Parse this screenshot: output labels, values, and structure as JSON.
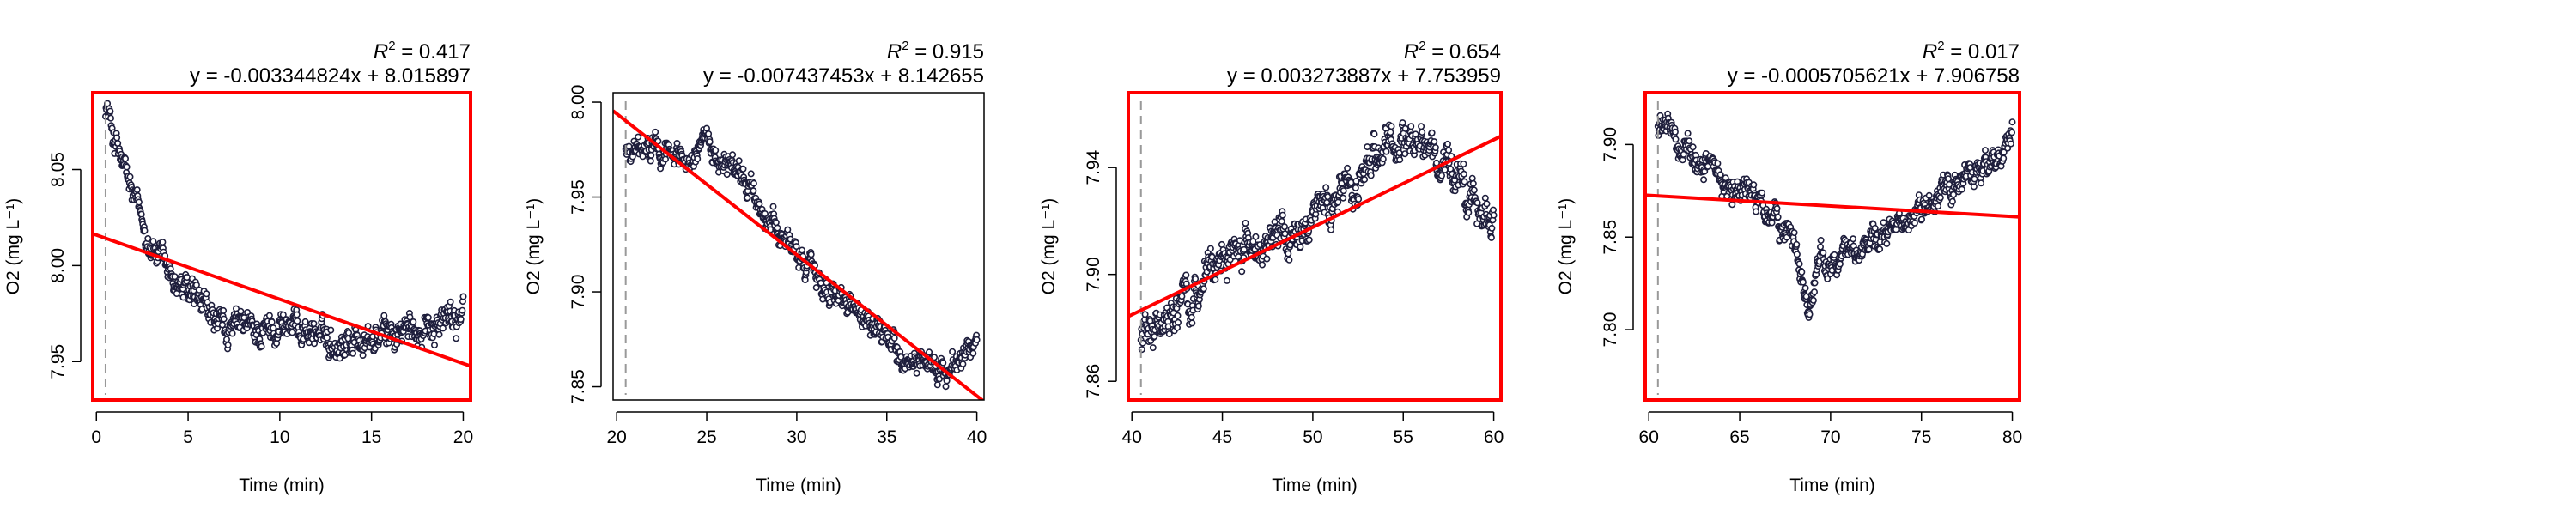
{
  "figure": {
    "colors": {
      "highlight_frame": "#ff0000",
      "plain_frame": "#000000",
      "fit_line": "#ff0000",
      "points": "#1e1e3c",
      "start_marker": "#999999"
    }
  },
  "chart_data": [
    {
      "type": "scatter",
      "title": "",
      "xlabel": "Time (min)",
      "ylabel": "O2 (mg L⁻¹)",
      "xlim": [
        -0.2,
        20.4
      ],
      "ylim": [
        7.93,
        8.09
      ],
      "xticks": [
        "0",
        "5",
        "10",
        "15",
        "20"
      ],
      "xtick_values": [
        0,
        5,
        10,
        15,
        20
      ],
      "yticks": [
        "7.95",
        "8.00",
        "8.05"
      ],
      "ytick_values": [
        7.95,
        8.0,
        8.05
      ],
      "r2_label": "R",
      "r2_superscript": "2",
      "r2_value": " = 0.417",
      "equation": "y = -0.003344824x + 8.015897",
      "slope": -0.003344824,
      "intercept": 8.015897,
      "start_x": 0.5,
      "frame": "red",
      "trace_anchors": [
        [
          0.5,
          8.085
        ],
        [
          1.0,
          8.065
        ],
        [
          2.0,
          8.035
        ],
        [
          3.0,
          8.01
        ],
        [
          4.0,
          7.995
        ],
        [
          5.0,
          7.985
        ],
        [
          6.0,
          7.975
        ],
        [
          7.0,
          7.965
        ],
        [
          8.0,
          7.968
        ],
        [
          9.0,
          7.965
        ],
        [
          10.0,
          7.97
        ],
        [
          11.0,
          7.968
        ],
        [
          12.0,
          7.965
        ],
        [
          13.0,
          7.96
        ],
        [
          14.0,
          7.962
        ],
        [
          15.0,
          7.96
        ],
        [
          16.0,
          7.965
        ],
        [
          17.0,
          7.965
        ],
        [
          18.0,
          7.97
        ],
        [
          19.0,
          7.972
        ],
        [
          20.0,
          7.975
        ]
      ],
      "noise": 0.009
    },
    {
      "type": "scatter",
      "title": "",
      "xlabel": "Time (min)",
      "ylabel": "O2 (mg L⁻¹)",
      "xlim": [
        19.8,
        40.4
      ],
      "ylim": [
        7.843,
        8.005
      ],
      "xticks": [
        "20",
        "25",
        "30",
        "35",
        "40"
      ],
      "xtick_values": [
        20,
        25,
        30,
        35,
        40
      ],
      "yticks": [
        "7.85",
        "7.90",
        "7.95",
        "8.00"
      ],
      "ytick_values": [
        7.85,
        7.9,
        7.95,
        8.0
      ],
      "r2_label": "R",
      "r2_superscript": "2",
      "r2_value": " = 0.915",
      "equation": "y = -0.007437453x + 8.142655",
      "slope": -0.007437453,
      "intercept": 8.142655,
      "start_x": 20.5,
      "frame": "black",
      "trace_anchors": [
        [
          20.5,
          7.975
        ],
        [
          22.0,
          7.975
        ],
        [
          24.0,
          7.972
        ],
        [
          25.0,
          7.975
        ],
        [
          26.0,
          7.97
        ],
        [
          27.0,
          7.96
        ],
        [
          28.0,
          7.945
        ],
        [
          29.0,
          7.93
        ],
        [
          30.0,
          7.92
        ],
        [
          31.0,
          7.91
        ],
        [
          32.0,
          7.9
        ],
        [
          33.0,
          7.89
        ],
        [
          34.0,
          7.88
        ],
        [
          35.0,
          7.875
        ],
        [
          36.0,
          7.865
        ],
        [
          37.0,
          7.86
        ],
        [
          38.0,
          7.86
        ],
        [
          39.0,
          7.865
        ],
        [
          40.0,
          7.875
        ]
      ],
      "noise": 0.007
    },
    {
      "type": "scatter",
      "title": "",
      "xlabel": "Time (min)",
      "ylabel": "O2 (mg L⁻¹)",
      "xlim": [
        39.8,
        60.4
      ],
      "ylim": [
        7.853,
        7.968
      ],
      "xticks": [
        "40",
        "45",
        "50",
        "55",
        "60"
      ],
      "xtick_values": [
        40,
        45,
        50,
        55,
        60
      ],
      "yticks": [
        "7.86",
        "7.90",
        "7.94"
      ],
      "ytick_values": [
        7.86,
        7.9,
        7.94
      ],
      "r2_label": "R",
      "r2_superscript": "2",
      "r2_value": " = 0.654",
      "equation": "y = 0.003273887x + 7.753959",
      "slope": 0.003273887,
      "intercept": 7.753959,
      "start_x": 40.5,
      "frame": "red",
      "trace_anchors": [
        [
          40.5,
          7.875
        ],
        [
          42.0,
          7.885
        ],
        [
          43.0,
          7.89
        ],
        [
          44.0,
          7.9
        ],
        [
          45.0,
          7.905
        ],
        [
          46.0,
          7.91
        ],
        [
          47.0,
          7.912
        ],
        [
          48.0,
          7.915
        ],
        [
          49.0,
          7.915
        ],
        [
          50.0,
          7.92
        ],
        [
          51.0,
          7.925
        ],
        [
          52.0,
          7.93
        ],
        [
          53.0,
          7.94
        ],
        [
          54.0,
          7.945
        ],
        [
          55.0,
          7.95
        ],
        [
          56.0,
          7.948
        ],
        [
          57.0,
          7.94
        ],
        [
          58.0,
          7.935
        ],
        [
          59.0,
          7.925
        ],
        [
          60.0,
          7.92
        ]
      ],
      "noise": 0.008
    },
    {
      "type": "scatter",
      "title": "",
      "xlabel": "Time (min)",
      "ylabel": "O2 (mg L⁻¹)",
      "xlim": [
        59.8,
        80.4
      ],
      "ylim": [
        7.762,
        7.928
      ],
      "xticks": [
        "60",
        "65",
        "70",
        "75",
        "80"
      ],
      "xtick_values": [
        60,
        65,
        70,
        75,
        80
      ],
      "yticks": [
        "7.80",
        "7.85",
        "7.90"
      ],
      "ytick_values": [
        7.8,
        7.85,
        7.9
      ],
      "r2_label": "R",
      "r2_superscript": "2",
      "r2_value": " = 0.017",
      "equation": "y = -0.0005705621x + 7.906758",
      "slope": -0.0005705621,
      "intercept": 7.906758,
      "start_x": 60.5,
      "frame": "red",
      "trace_anchors": [
        [
          60.5,
          7.91
        ],
        [
          62.0,
          7.9
        ],
        [
          63.0,
          7.89
        ],
        [
          64.0,
          7.88
        ],
        [
          65.0,
          7.875
        ],
        [
          66.0,
          7.87
        ],
        [
          67.0,
          7.86
        ],
        [
          68.0,
          7.85
        ],
        [
          68.8,
          7.81
        ],
        [
          69.5,
          7.84
        ],
        [
          70.0,
          7.835
        ],
        [
          71.0,
          7.84
        ],
        [
          72.0,
          7.845
        ],
        [
          73.0,
          7.85
        ],
        [
          74.0,
          7.86
        ],
        [
          75.0,
          7.865
        ],
        [
          76.0,
          7.87
        ],
        [
          77.0,
          7.88
        ],
        [
          78.0,
          7.885
        ],
        [
          79.0,
          7.89
        ],
        [
          80.0,
          7.905
        ]
      ],
      "noise": 0.008
    }
  ]
}
